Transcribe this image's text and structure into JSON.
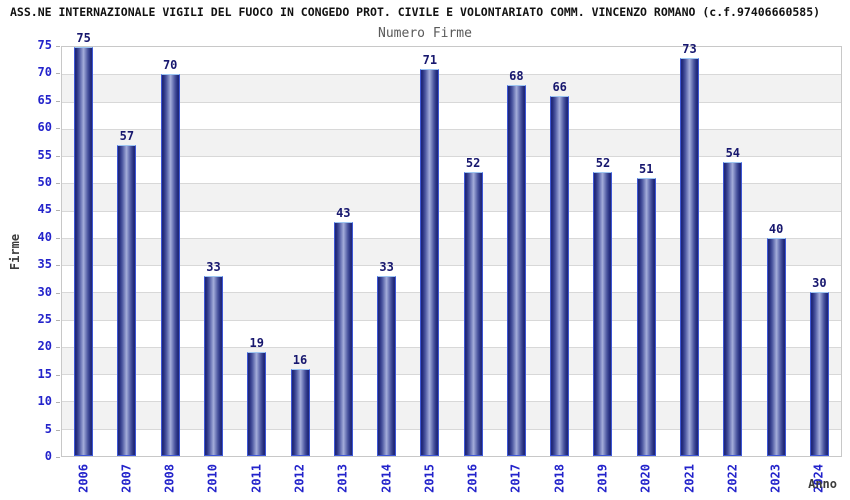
{
  "header": {
    "title": "ASS.NE INTERNAZIONALE VIGILI DEL FUOCO IN CONGEDO PROT. CIVILE E VOLONTARIATO COMM. VINCENZO ROMANO (c.f.97406660585)"
  },
  "chart_data": {
    "type": "bar",
    "title": "Numero Firme",
    "xlabel": "Anno",
    "ylabel": "Firme",
    "categories": [
      "2006",
      "2007",
      "2008",
      "2010",
      "2011",
      "2012",
      "2013",
      "2014",
      "2015",
      "2016",
      "2017",
      "2018",
      "2019",
      "2020",
      "2021",
      "2022",
      "2023",
      "2024"
    ],
    "values": [
      75,
      57,
      70,
      33,
      19,
      16,
      43,
      33,
      71,
      52,
      68,
      66,
      52,
      51,
      73,
      54,
      40,
      30
    ],
    "ylim": [
      0,
      75
    ],
    "ytick_step": 5,
    "grid": "horizontal-bands",
    "legend": "none",
    "colors": {
      "bar_dark": "#1e2674",
      "bar_highlight": "#a6aeda",
      "bar_border": "#3d57d6",
      "bar_border_top": "#9dc5f2",
      "tick_label": "#2323cb",
      "value_label": "#17176e",
      "axis_title": "#3d3d3d",
      "band_gray": "#f2f2f2",
      "band_white": "#ffffff",
      "gridline": "#d8d8d8",
      "chart_title": "#5a5a5a",
      "header_title": "#111111"
    }
  }
}
